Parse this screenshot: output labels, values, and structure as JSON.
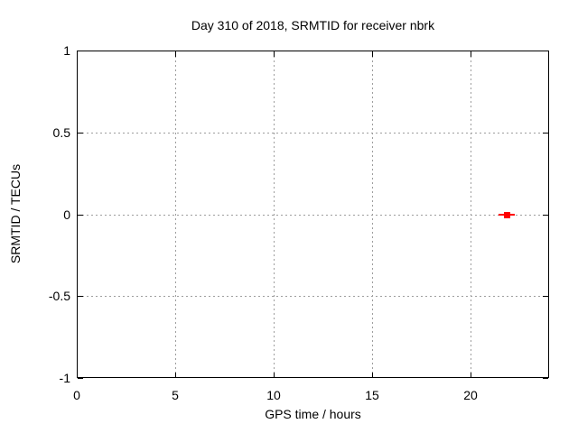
{
  "window": {
    "background": "#ffffff"
  },
  "chart_data": {
    "type": "scatter",
    "title": "Day 310 of 2018, SRMTID for receiver nbrk",
    "xlabel": "GPS time / hours",
    "ylabel": "SRMTID / TECUs",
    "xlim": [
      0,
      24
    ],
    "ylim": [
      -1,
      1
    ],
    "xticks": [
      {
        "v": 0,
        "label": "0"
      },
      {
        "v": 5,
        "label": "5"
      },
      {
        "v": 10,
        "label": "10"
      },
      {
        "v": 15,
        "label": "15"
      },
      {
        "v": 20,
        "label": "20"
      }
    ],
    "yticks": [
      {
        "v": -1,
        "label": "-1"
      },
      {
        "v": -0.5,
        "label": "-0.5"
      },
      {
        "v": 0,
        "label": "0"
      },
      {
        "v": 0.5,
        "label": "0.5"
      },
      {
        "v": 1,
        "label": "1"
      }
    ],
    "grid": "dotted",
    "legend": "none",
    "colors": {
      "border": "#000000",
      "grid": "#9e9e9e",
      "text": "#000000",
      "marker": "#ff0000"
    },
    "series": [
      {
        "name": "SRMTID",
        "marker": "filled-square-with-x-errorbar",
        "color": "#ff0000",
        "points": [
          {
            "x": 21.85,
            "y": 0.0,
            "xerr": 0.4
          }
        ]
      }
    ]
  }
}
